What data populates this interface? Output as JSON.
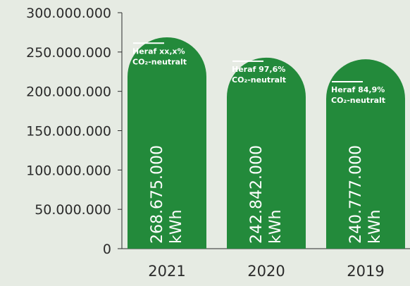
{
  "chart_data": {
    "type": "bar",
    "categories": [
      "2021",
      "2020",
      "2019"
    ],
    "values": [
      268675000,
      242842000,
      240777000
    ],
    "value_labels": [
      [
        "268.675.000",
        "kWh"
      ],
      [
        "242.842.000",
        "kWh"
      ],
      [
        "240.777.000",
        "kWh"
      ]
    ],
    "annotations": [
      [
        "Heraf xx,x%",
        "CO₂-neutralt"
      ],
      [
        "Heraf 97,6%",
        "CO₂-neutralt"
      ],
      [
        "Heraf 84,9%",
        "CO₂-neutralt"
      ]
    ],
    "annotation_levels": [
      255000000,
      232000000,
      206000000
    ],
    "y_ticks": [
      "0",
      "50.000.000",
      "100.000.000",
      "150.000.000",
      "200.000.000",
      "250.000.000",
      "300.000.000"
    ],
    "y_tick_values": [
      0,
      50000000,
      100000000,
      150000000,
      200000000,
      250000000,
      300000000
    ],
    "ylim": [
      0,
      300000000
    ],
    "grid": false,
    "colors": {
      "bar": "#238a3b",
      "background": "#e6ebe3",
      "text": "#2b2b2b",
      "axis": "#2b2b2b",
      "bar_text": "#ffffff"
    }
  }
}
